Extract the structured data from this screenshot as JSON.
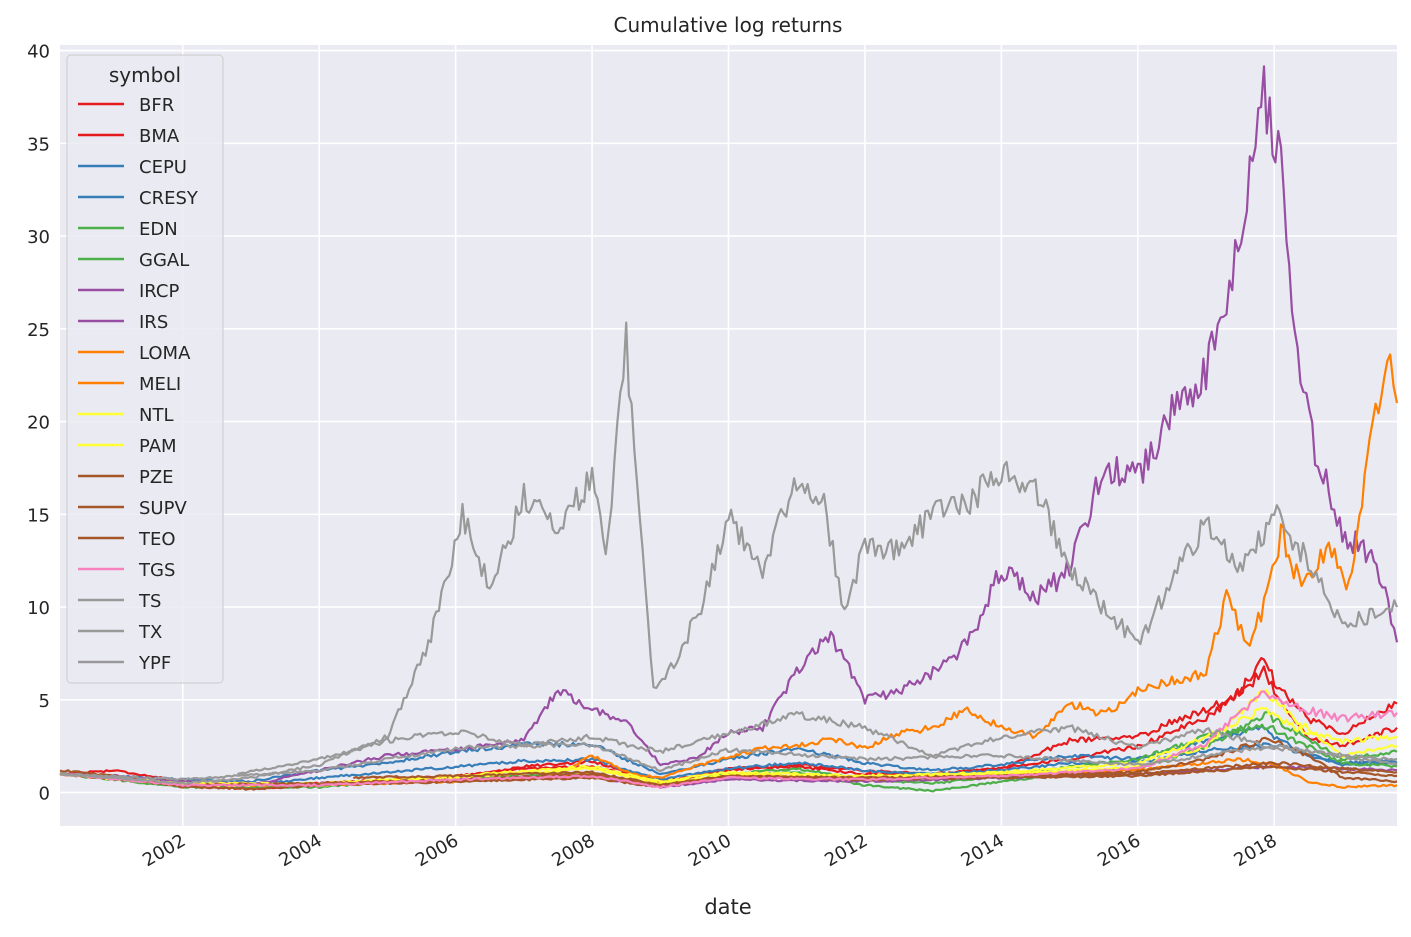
{
  "chart_data": {
    "type": "line",
    "title": "Cumulative log returns",
    "xlabel": "date",
    "ylabel": "",
    "x_ticks": [
      "2002",
      "2004",
      "2006",
      "2008",
      "2010",
      "2012",
      "2014",
      "2016",
      "2018"
    ],
    "y_ticks": [
      0,
      5,
      10,
      15,
      20,
      25,
      30,
      35,
      40
    ],
    "xlim": [
      2000.2,
      2019.8
    ],
    "ylim": [
      -1.8,
      40.3
    ],
    "grid": true,
    "legend": {
      "title": "symbol",
      "placement": "top-left"
    },
    "background": "#eaeaf2",
    "series": [
      {
        "name": "BFR",
        "color": "#e41a1c",
        "x": [
          2000.2,
          2001,
          2002,
          2003,
          2004,
          2005,
          2006,
          2007,
          2008,
          2009,
          2010,
          2011,
          2012,
          2013,
          2014,
          2015,
          2016,
          2016.5,
          2017,
          2017.5,
          2017.85,
          2018,
          2018.5,
          2019,
          2019.8
        ],
        "y": [
          1.0,
          0.8,
          0.4,
          0.2,
          0.4,
          0.6,
          0.7,
          1.4,
          1.7,
          0.5,
          1.3,
          1.4,
          1.0,
          1.0,
          1.3,
          2.8,
          3.0,
          3.8,
          4.5,
          5.4,
          7.5,
          6.0,
          4.0,
          3.2,
          4.8
        ]
      },
      {
        "name": "BMA",
        "color": "#e41a1c",
        "x": [
          2000.2,
          2001,
          2002,
          2003,
          2004,
          2005,
          2006,
          2007,
          2008,
          2009,
          2010,
          2011,
          2012,
          2013,
          2014,
          2015,
          2016,
          2017,
          2017.85,
          2018,
          2018.5,
          2019,
          2019.8
        ],
        "y": [
          1.0,
          1.2,
          0.6,
          0.3,
          0.5,
          0.7,
          0.9,
          1.3,
          1.4,
          0.6,
          1.2,
          1.5,
          1.2,
          1.0,
          1.3,
          1.8,
          2.5,
          4.0,
          6.5,
          5.5,
          3.0,
          2.5,
          3.5
        ]
      },
      {
        "name": "CEPU",
        "color": "#377eb8",
        "x": [
          2000.2,
          2001,
          2002,
          2003,
          2004,
          2005,
          2006,
          2007,
          2008,
          2009,
          2010,
          2011,
          2012,
          2013,
          2014,
          2015,
          2016,
          2017,
          2017.85,
          2018,
          2018.5,
          2019,
          2019.8
        ],
        "y": [
          1.0,
          0.9,
          0.7,
          0.6,
          1.2,
          1.6,
          2.2,
          2.6,
          2.6,
          1.0,
          1.8,
          2.4,
          1.6,
          1.2,
          1.5,
          2.0,
          1.8,
          2.8,
          3.5,
          3.0,
          2.0,
          1.6,
          1.8
        ]
      },
      {
        "name": "CRESY",
        "color": "#377eb8",
        "x": [
          2000.2,
          2001,
          2002,
          2003,
          2004,
          2005,
          2006,
          2007,
          2008,
          2009,
          2010,
          2011,
          2012,
          2013,
          2014,
          2015,
          2016,
          2017,
          2018,
          2019,
          2019.8
        ],
        "y": [
          1.0,
          0.8,
          0.5,
          0.4,
          0.8,
          1.1,
          1.4,
          1.7,
          1.8,
          0.7,
          1.3,
          1.6,
          1.2,
          1.0,
          1.2,
          1.6,
          1.6,
          2.3,
          2.6,
          1.5,
          1.6
        ]
      },
      {
        "name": "EDN",
        "color": "#4daf4a",
        "x": [
          2000.2,
          2002,
          2004,
          2006,
          2008,
          2009,
          2010,
          2011,
          2012,
          2013,
          2014,
          2015,
          2016,
          2017,
          2017.9,
          2018.2,
          2019,
          2019.8
        ],
        "y": [
          1.0,
          0.5,
          0.4,
          0.7,
          1.0,
          0.4,
          0.9,
          1.1,
          0.4,
          0.1,
          0.6,
          1.0,
          1.3,
          2.5,
          4.2,
          3.5,
          1.8,
          2.2
        ]
      },
      {
        "name": "GGAL",
        "color": "#4daf4a",
        "x": [
          2000.2,
          2002,
          2004,
          2006,
          2008,
          2009,
          2010,
          2011,
          2012,
          2013,
          2014,
          2015,
          2016,
          2017,
          2017.9,
          2018.2,
          2019,
          2019.8
        ],
        "y": [
          1.0,
          0.3,
          0.3,
          0.8,
          1.0,
          0.4,
          1.0,
          1.3,
          0.7,
          0.5,
          0.9,
          1.4,
          1.8,
          3.0,
          3.6,
          3.0,
          1.6,
          1.4
        ]
      },
      {
        "name": "IRCP",
        "color": "#984ea3",
        "x": [
          2000.2,
          2001,
          2002,
          2003,
          2004,
          2005,
          2006,
          2007,
          2007.5,
          2008,
          2008.5,
          2009,
          2009.5,
          2010,
          2010.5,
          2011,
          2011.5,
          2012,
          2012.5,
          2013,
          2013.5,
          2014,
          2014.5,
          2015,
          2015.5,
          2016,
          2016.5,
          2017,
          2017.3,
          2017.6,
          2017.85,
          2018.1,
          2018.3,
          2018.6,
          2019,
          2019.5,
          2019.8
        ],
        "y": [
          1.0,
          0.9,
          0.6,
          0.4,
          1.2,
          2.0,
          2.3,
          2.8,
          5.6,
          4.5,
          3.8,
          1.5,
          1.8,
          3.2,
          3.5,
          6.5,
          8.5,
          5.0,
          5.5,
          6.5,
          8.0,
          12.0,
          10.5,
          12.0,
          17.5,
          17.0,
          20.5,
          22.5,
          27.0,
          32.0,
          38.0,
          34.0,
          24.0,
          18.5,
          14.0,
          12.5,
          8.1
        ]
      },
      {
        "name": "IRS",
        "color": "#984ea3",
        "x": [
          2000.2,
          2002,
          2004,
          2006,
          2008,
          2009,
          2010,
          2012,
          2014,
          2016,
          2018,
          2019.8
        ],
        "y": [
          1.0,
          0.5,
          0.5,
          0.7,
          0.8,
          0.3,
          0.7,
          0.6,
          0.8,
          1.0,
          1.4,
          1.2
        ]
      },
      {
        "name": "LOMA",
        "color": "#ff7f00",
        "x": [
          2000.2,
          2002,
          2004,
          2006,
          2008,
          2009,
          2010,
          2012,
          2014,
          2016,
          2017.5,
          2018,
          2018.5,
          2019,
          2019.8
        ],
        "y": [
          1.0,
          0.4,
          0.4,
          0.6,
          1.0,
          0.4,
          0.9,
          0.8,
          1.0,
          1.2,
          1.8,
          1.5,
          0.6,
          0.3,
          0.4
        ]
      },
      {
        "name": "MELI",
        "color": "#ff7f00",
        "x": [
          2007.6,
          2008,
          2008.6,
          2009,
          2009.5,
          2010,
          2010.5,
          2011,
          2011.5,
          2012,
          2012.5,
          2013,
          2013.5,
          2014,
          2014.5,
          2015,
          2015.5,
          2016,
          2016.5,
          2017,
          2017.3,
          2017.6,
          2017.85,
          2018.1,
          2018.4,
          2018.8,
          2019.1,
          2019.4,
          2019.7,
          2019.8
        ],
        "y": [
          1.2,
          2.0,
          1.0,
          0.8,
          1.4,
          1.9,
          2.4,
          2.5,
          2.9,
          2.4,
          3.2,
          3.5,
          4.5,
          3.5,
          3.0,
          4.8,
          4.2,
          5.5,
          6.0,
          6.5,
          10.5,
          8.0,
          10.0,
          14.0,
          11.0,
          13.5,
          11.0,
          19.0,
          24.0,
          21.0
        ]
      },
      {
        "name": "NTL",
        "color": "#ffff33",
        "x": [
          2000.2,
          2002,
          2004,
          2006,
          2008,
          2009,
          2010,
          2012,
          2014,
          2016,
          2017,
          2017.85,
          2018.3,
          2019,
          2019.8
        ],
        "y": [
          1.0,
          0.4,
          0.4,
          0.8,
          1.3,
          0.5,
          1.0,
          0.8,
          1.0,
          1.4,
          2.5,
          5.6,
          4.0,
          2.0,
          2.5
        ]
      },
      {
        "name": "PAM",
        "color": "#ffff33",
        "x": [
          2000.2,
          2002,
          2004,
          2006,
          2008,
          2009,
          2010,
          2012,
          2014,
          2016,
          2017,
          2017.85,
          2018.3,
          2019,
          2019.8
        ],
        "y": [
          1.0,
          0.5,
          0.5,
          0.9,
          1.4,
          0.6,
          1.1,
          0.9,
          1.1,
          1.6,
          3.0,
          4.5,
          3.5,
          2.8,
          3.0
        ]
      },
      {
        "name": "PZE",
        "color": "#a65628",
        "x": [
          2000.2,
          2002,
          2004,
          2006,
          2008,
          2009,
          2010,
          2012,
          2014,
          2016,
          2018,
          2019.8
        ],
        "y": [
          1.0,
          0.4,
          0.5,
          0.7,
          1.0,
          0.4,
          0.9,
          0.7,
          0.8,
          0.9,
          1.4,
          0.9
        ]
      },
      {
        "name": "SUPV",
        "color": "#a65628",
        "x": [
          2004.5,
          2006,
          2008,
          2009,
          2010,
          2012,
          2014,
          2016,
          2017,
          2017.9,
          2018.5,
          2019,
          2019.8
        ],
        "y": [
          0.8,
          0.9,
          1.1,
          0.4,
          0.9,
          0.7,
          0.9,
          1.1,
          1.8,
          2.9,
          2.0,
          0.8,
          0.6
        ]
      },
      {
        "name": "TEO",
        "color": "#a65628",
        "x": [
          2000.2,
          2001,
          2002,
          2003,
          2004,
          2006,
          2008,
          2009,
          2010,
          2012,
          2014,
          2016,
          2018,
          2019,
          2019.8
        ],
        "y": [
          1.2,
          0.9,
          0.3,
          0.2,
          0.4,
          0.6,
          0.8,
          0.3,
          0.9,
          0.8,
          0.9,
          1.0,
          1.6,
          1.3,
          1.1
        ]
      },
      {
        "name": "TGS",
        "color": "#f781bf",
        "x": [
          2000.2,
          2002,
          2004,
          2006,
          2008,
          2009,
          2010,
          2012,
          2014,
          2016,
          2017,
          2017.85,
          2018.3,
          2019,
          2019.8
        ],
        "y": [
          1.0,
          0.4,
          0.4,
          0.7,
          0.9,
          0.3,
          0.8,
          0.7,
          0.9,
          1.3,
          2.6,
          5.5,
          4.6,
          4.0,
          4.3
        ]
      },
      {
        "name": "TS",
        "color": "#999999",
        "x": [
          2002.8,
          2004,
          2005,
          2006,
          2007,
          2008,
          2009,
          2010,
          2011,
          2012,
          2013,
          2014,
          2015,
          2016,
          2017,
          2018,
          2019,
          2019.8
        ],
        "y": [
          1.0,
          1.8,
          2.8,
          3.3,
          2.6,
          3.0,
          2.2,
          3.2,
          4.2,
          3.5,
          2.0,
          3.0,
          3.5,
          2.4,
          3.4,
          2.4,
          2.0,
          1.8
        ]
      },
      {
        "name": "TX",
        "color": "#999999",
        "x": [
          2000.2,
          2002,
          2004,
          2006,
          2008,
          2009,
          2010,
          2012,
          2014,
          2016,
          2018,
          2019.8
        ],
        "y": [
          1.0,
          0.7,
          1.2,
          2.4,
          2.6,
          1.2,
          2.3,
          1.8,
          2.0,
          1.5,
          2.5,
          1.5
        ]
      },
      {
        "name": "YPF",
        "color": "#999999",
        "x": [
          2000.2,
          2001,
          2002,
          2003,
          2004,
          2005,
          2005.6,
          2006.1,
          2006.5,
          2007,
          2007.5,
          2008,
          2008.2,
          2008.5,
          2008.9,
          2009.2,
          2009.6,
          2010,
          2010.5,
          2011,
          2011.4,
          2011.7,
          2012,
          2012.5,
          2013,
          2013.5,
          2014,
          2014.5,
          2015,
          2015.5,
          2016,
          2016.5,
          2017,
          2017.5,
          2018,
          2018.5,
          2019,
          2019.8
        ],
        "y": [
          1.0,
          0.8,
          0.5,
          0.8,
          1.5,
          3.0,
          8.0,
          15.0,
          11.0,
          16.0,
          14.5,
          17.0,
          12.5,
          24.2,
          5.5,
          7.0,
          10.0,
          15.0,
          12.0,
          17.0,
          15.5,
          9.5,
          13.5,
          13.0,
          15.0,
          15.5,
          17.5,
          16.5,
          12.0,
          10.0,
          8.0,
          11.5,
          14.5,
          12.0,
          15.0,
          12.5,
          9.0,
          10.0
        ]
      }
    ]
  }
}
